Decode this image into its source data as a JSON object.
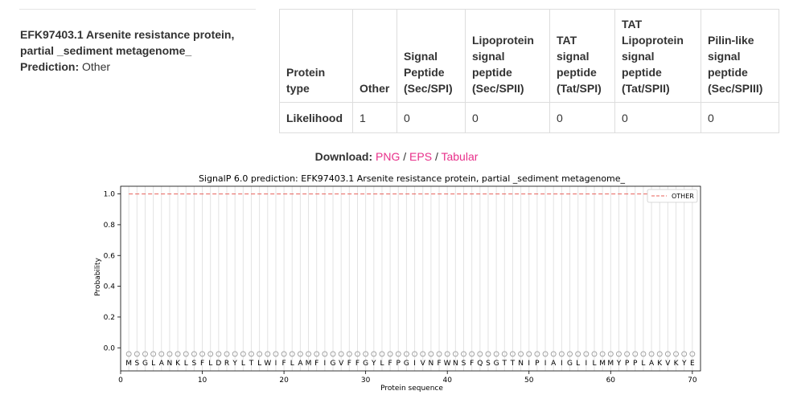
{
  "summary": {
    "title_line1": "EFK97403.1 Arsenite resistance protein,",
    "title_line2": "partial _sediment metagenome_",
    "prediction_label": "Prediction:",
    "prediction_value": "Other"
  },
  "table": {
    "header_cells": [
      [
        "Protein",
        "type"
      ],
      [
        "Other"
      ],
      [
        "Signal",
        "Peptide",
        "(Sec/SPI)"
      ],
      [
        "Lipoprotein",
        "signal",
        "peptide",
        "(Sec/SPII)"
      ],
      [
        "TAT",
        "signal",
        "peptide",
        "(Tat/SPI)"
      ],
      [
        "TAT",
        "Lipoprotein",
        "signal",
        "peptide",
        "(Tat/SPII)"
      ],
      [
        "Pilin-like",
        "signal",
        "peptide",
        "(Sec/SPIII)"
      ]
    ],
    "row_label": "Likelihood",
    "row_values": [
      "1",
      "0",
      "0",
      "0",
      "0",
      "0"
    ]
  },
  "download": {
    "label": "Download:",
    "links": [
      "PNG",
      "EPS",
      "Tabular"
    ],
    "separator": "/"
  },
  "chart_data": {
    "type": "line",
    "title": "SignalP 6.0 prediction: EFK97403.1 Arsenite resistance protein, partial _sediment metagenome_",
    "xlabel": "Protein sequence",
    "ylabel": "Probability",
    "xlim": [
      0,
      71
    ],
    "ylim": [
      -0.15,
      1.05
    ],
    "xticks": [
      0,
      10,
      20,
      30,
      40,
      50,
      60,
      70
    ],
    "yticks": [
      0.0,
      0.2,
      0.4,
      0.6,
      0.8,
      1.0
    ],
    "ytick_labels": [
      "0.0",
      "0.2",
      "0.4",
      "0.6",
      "0.8",
      "1.0"
    ],
    "legend_position": "top-right",
    "series": [
      {
        "name": "OTHER",
        "color": "#e8605a",
        "style": "dashed",
        "x_start": 1,
        "x_end": 70,
        "value": 1.0
      }
    ],
    "residue_marker_y": -0.04,
    "residue_marker_color": "#999999",
    "grid_color": "#e3e3e3",
    "sequence": [
      "M",
      "S",
      "G",
      "L",
      "A",
      "N",
      "K",
      "L",
      "S",
      "F",
      "L",
      "D",
      "R",
      "Y",
      "L",
      "T",
      "L",
      "W",
      "I",
      "F",
      "L",
      "A",
      "M",
      "F",
      "I",
      "G",
      "V",
      "F",
      "F",
      "G",
      "Y",
      "L",
      "F",
      "P",
      "G",
      "I",
      "V",
      "N",
      "F",
      "W",
      "N",
      "S",
      "F",
      "Q",
      "S",
      "G",
      "T",
      "T",
      "N",
      "I",
      "P",
      "I",
      "A",
      "I",
      "G",
      "L",
      "I",
      "L",
      "M",
      "M",
      "Y",
      "P",
      "P",
      "L",
      "A",
      "K",
      "V",
      "K",
      "Y",
      "E"
    ]
  }
}
